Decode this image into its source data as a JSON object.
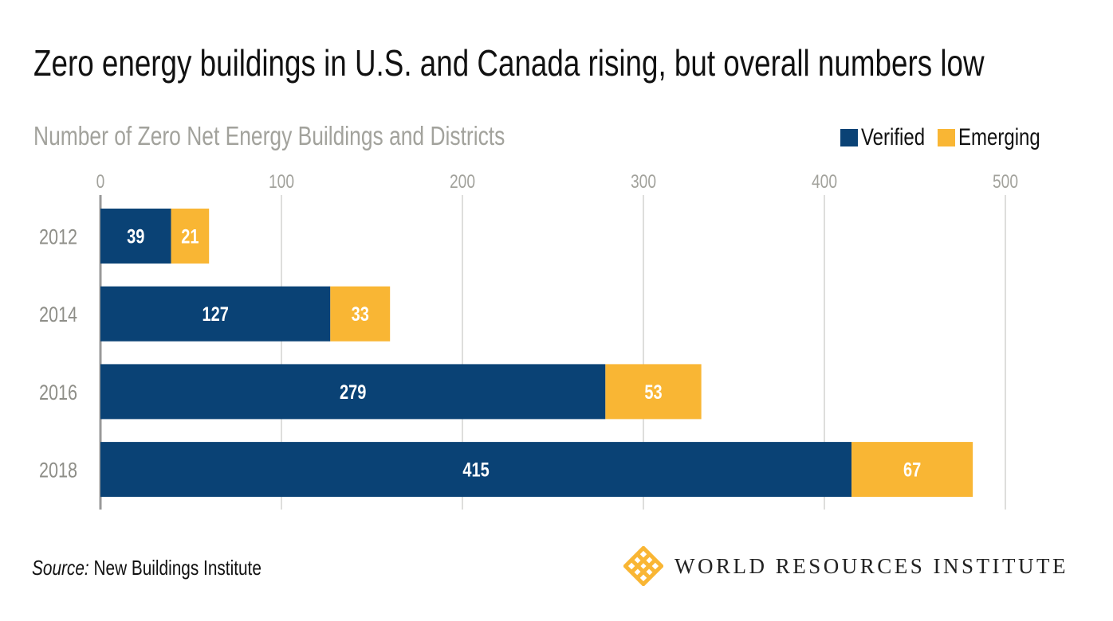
{
  "title": "Zero energy buildings in U.S. and Canada rising, but overall numbers low",
  "source_label": "Source:",
  "source_text": "New Buildings Institute",
  "logo_text": "WORLD RESOURCES INSTITUTE",
  "chart_data": {
    "type": "bar",
    "orientation": "horizontal",
    "stacked": true,
    "title": "Number of Zero Net Energy Buildings and Districts",
    "categories": [
      "2012",
      "2014",
      "2016",
      "2018"
    ],
    "series": [
      {
        "name": "Verified",
        "color": "#0a4275",
        "values": [
          39,
          127,
          279,
          415
        ]
      },
      {
        "name": "Emerging",
        "color": "#f9b634",
        "values": [
          21,
          33,
          53,
          67
        ]
      }
    ],
    "xlim": [
      0,
      500
    ],
    "xticks": [
      "0",
      "100",
      "200",
      "300",
      "400",
      "500"
    ],
    "grid": true,
    "legend": "top-right",
    "axis_position": "top"
  }
}
